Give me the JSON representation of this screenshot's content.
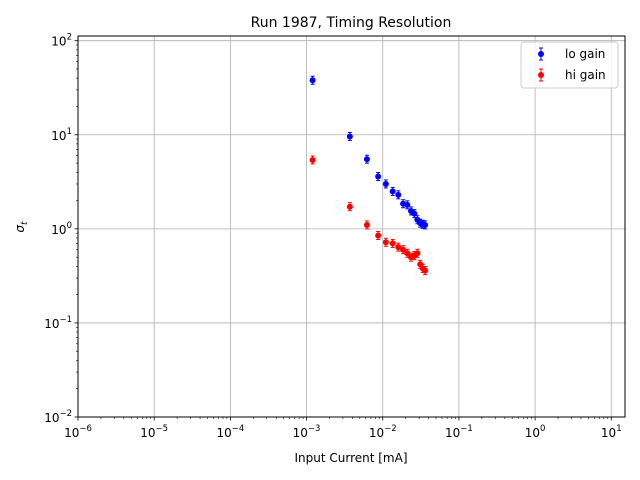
{
  "chart_data": {
    "type": "scatter",
    "title": "Run 1987, Timing Resolution",
    "xlabel": "Input Current [mA]",
    "ylabel": "σ",
    "ylabel_sub": "t",
    "xscale": "log",
    "yscale": "log",
    "xlim_exp": [
      -6,
      1.18
    ],
    "ylim_exp": [
      -2,
      2.05
    ],
    "x_ticks": [
      {
        "exp": -6,
        "base": "10",
        "sup": "−6"
      },
      {
        "exp": -5,
        "base": "10",
        "sup": "−5"
      },
      {
        "exp": -4,
        "base": "10",
        "sup": "−4"
      },
      {
        "exp": -3,
        "base": "10",
        "sup": "−3"
      },
      {
        "exp": -2,
        "base": "10",
        "sup": "−2"
      },
      {
        "exp": -1,
        "base": "10",
        "sup": "−1"
      },
      {
        "exp": 0,
        "base": "10",
        "sup": "0"
      },
      {
        "exp": 1,
        "base": "10",
        "sup": "1"
      }
    ],
    "y_ticks": [
      {
        "exp": -2,
        "base": "10",
        "sup": "−2"
      },
      {
        "exp": -1,
        "base": "10",
        "sup": "−1"
      },
      {
        "exp": 0,
        "base": "10",
        "sup": "0"
      },
      {
        "exp": 1,
        "base": "10",
        "sup": "1"
      },
      {
        "exp": 2,
        "base": "10",
        "sup": "2"
      }
    ],
    "grid": true,
    "legend_position": "top-right",
    "series": [
      {
        "name": "lo gain",
        "color": "#0000ff",
        "x": [
          0.0012,
          0.0037,
          0.0062,
          0.0087,
          0.011,
          0.0135,
          0.016,
          0.0185,
          0.021,
          0.0235,
          0.026,
          0.0285,
          0.031,
          0.0335,
          0.036
        ],
        "y": [
          38,
          9.6,
          5.5,
          3.6,
          3.0,
          2.5,
          2.3,
          1.85,
          1.8,
          1.55,
          1.45,
          1.25,
          1.15,
          1.12,
          1.1
        ]
      },
      {
        "name": "hi gain",
        "color": "#ff0000",
        "x": [
          0.0012,
          0.0037,
          0.0062,
          0.0087,
          0.011,
          0.0135,
          0.016,
          0.0185,
          0.021,
          0.0235,
          0.026,
          0.0285,
          0.031,
          0.0335,
          0.036
        ],
        "y": [
          5.4,
          1.72,
          1.1,
          0.85,
          0.72,
          0.7,
          0.64,
          0.6,
          0.55,
          0.5,
          0.52,
          0.55,
          0.42,
          0.38,
          0.36
        ]
      }
    ]
  }
}
